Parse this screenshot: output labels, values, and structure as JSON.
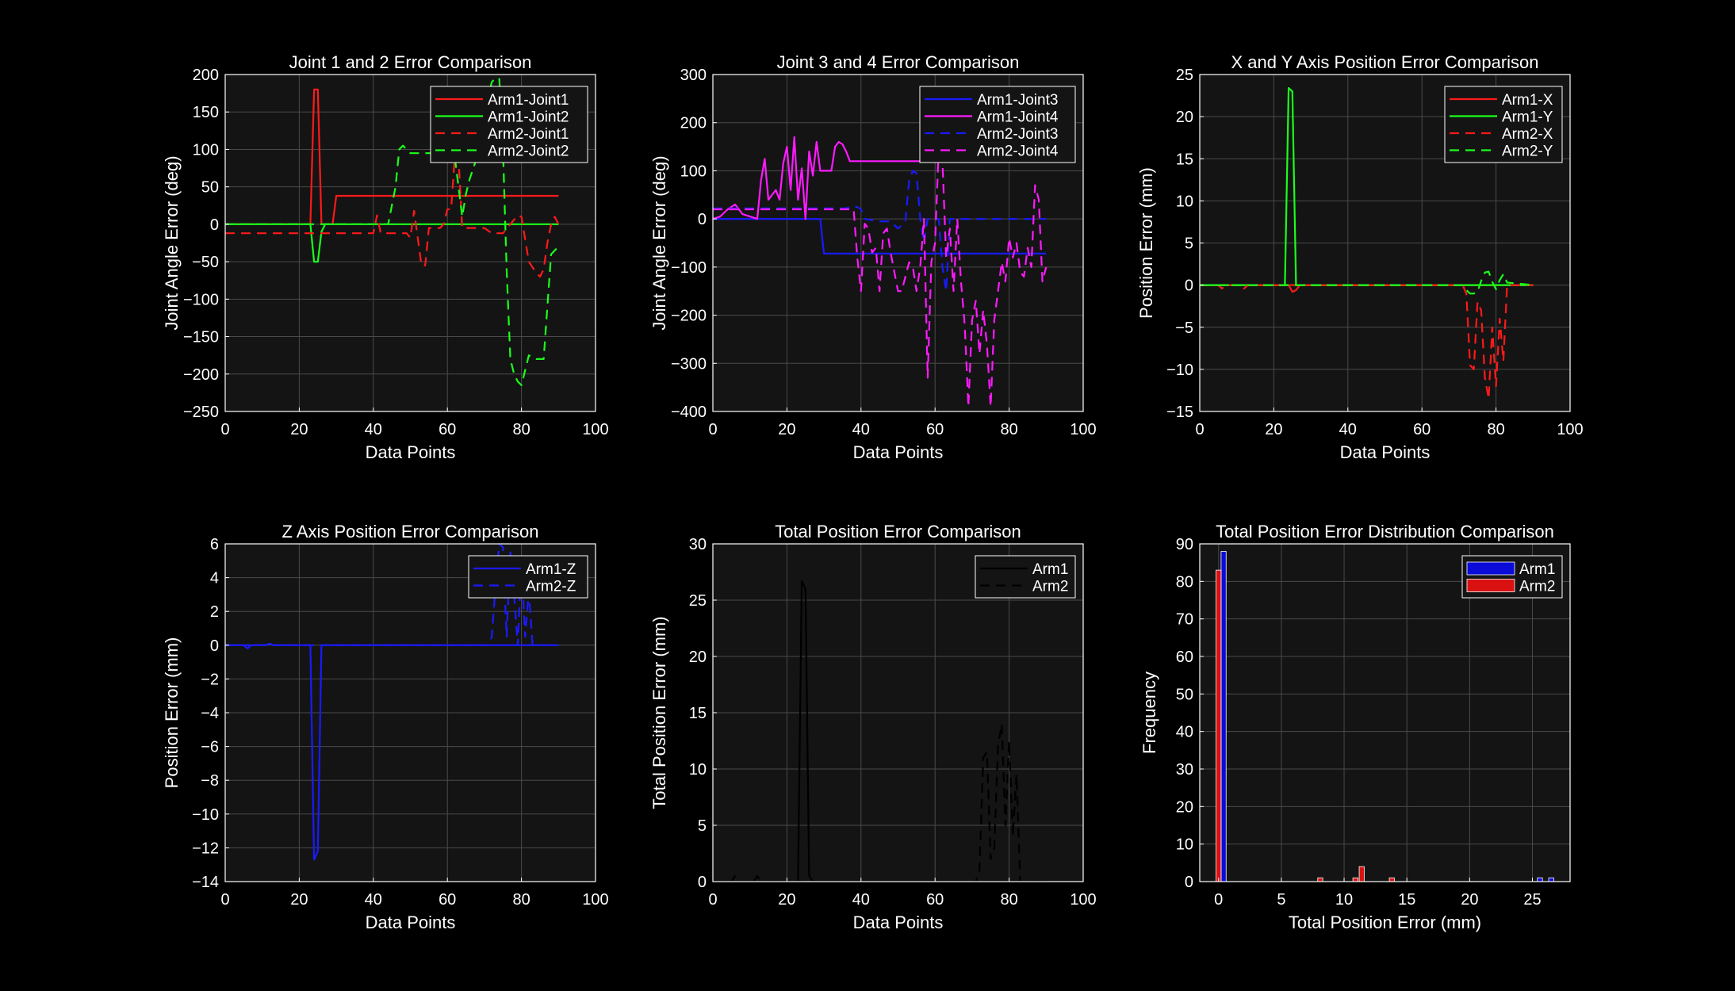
{
  "colors": {
    "background": "#000000",
    "axes_face": "#141414",
    "grid": "#4a4a4a",
    "text": "#ffffff",
    "red": "#ff1a1a",
    "green": "#1aff1a",
    "blue": "#1a1aff",
    "magenta": "#ff1aff",
    "black": "#000000",
    "bar_blue": "#0b0bd9",
    "bar_red": "#d91111"
  },
  "chart_data": [
    {
      "id": "p1",
      "type": "line",
      "title": "Joint 1 and 2 Error Comparison",
      "xlabel": "Data Points",
      "ylabel": "Joint Angle Error (deg)",
      "xlim": [
        0,
        100
      ],
      "ylim": [
        -250,
        200
      ],
      "xticks": [
        0,
        20,
        40,
        60,
        80,
        100
      ],
      "yticks": [
        -250,
        -200,
        -150,
        -100,
        -50,
        0,
        50,
        100,
        150,
        200
      ],
      "legend": "top-right",
      "series": [
        {
          "name": "Arm1-Joint1",
          "color": "red",
          "dash": "solid",
          "x": [
            0,
            23,
            24,
            25,
            26,
            28,
            29,
            30,
            31,
            90
          ],
          "y": [
            0,
            0,
            180,
            180,
            0,
            0,
            0,
            38,
            38,
            38
          ]
        },
        {
          "name": "Arm1-Joint2",
          "color": "green",
          "dash": "solid",
          "x": [
            0,
            23,
            24,
            25,
            26,
            27,
            90
          ],
          "y": [
            0,
            0,
            -50,
            -50,
            -10,
            0,
            0
          ]
        },
        {
          "name": "Arm2-Joint1",
          "color": "red",
          "dash": "dashed",
          "x": [
            0,
            40,
            41,
            42,
            45,
            47,
            49,
            50,
            51,
            53,
            54,
            55,
            57,
            58,
            59,
            60,
            61,
            62,
            63,
            64,
            65,
            66,
            67,
            68,
            70,
            72,
            74,
            75,
            77,
            79,
            80,
            82,
            84,
            85,
            86,
            87,
            88,
            89,
            90
          ],
          "y": [
            -12,
            -12,
            12,
            -12,
            -12,
            -12,
            -12,
            -18,
            18,
            -55,
            -55,
            -5,
            -5,
            -5,
            0,
            20,
            20,
            90,
            90,
            -5,
            -5,
            -5,
            -5,
            -5,
            -5,
            -12,
            -12,
            -12,
            0,
            12,
            10,
            -50,
            -65,
            -70,
            -60,
            -25,
            0,
            10,
            0
          ]
        },
        {
          "name": "Arm2-Joint2",
          "color": "green",
          "dash": "dashed",
          "x": [
            0,
            44,
            46,
            47,
            48,
            49,
            50,
            52,
            54,
            56,
            58,
            60,
            62,
            64,
            65,
            66,
            68,
            70,
            72,
            73,
            74,
            75,
            76,
            77,
            78,
            79,
            80,
            82,
            84,
            85,
            86,
            87,
            88,
            89,
            90
          ],
          "y": [
            0,
            0,
            50,
            100,
            105,
            100,
            95,
            95,
            95,
            95,
            95,
            95,
            90,
            10,
            40,
            60,
            90,
            150,
            190,
            195,
            195,
            100,
            -60,
            -180,
            -200,
            -210,
            -215,
            -175,
            -180,
            -180,
            -180,
            -110,
            -40,
            -35,
            -30
          ]
        }
      ]
    },
    {
      "id": "p2",
      "type": "line",
      "title": "Joint 3 and 4 Error Comparison",
      "xlabel": "Data Points",
      "ylabel": "Joint Angle Error (deg)",
      "xlim": [
        0,
        100
      ],
      "ylim": [
        -400,
        300
      ],
      "xticks": [
        0,
        20,
        40,
        60,
        80,
        100
      ],
      "yticks": [
        -400,
        -300,
        -200,
        -100,
        0,
        100,
        200,
        300
      ],
      "legend": "top-right",
      "series": [
        {
          "name": "Arm1-Joint3",
          "color": "blue",
          "dash": "solid",
          "x": [
            0,
            29,
            30,
            90
          ],
          "y": [
            0,
            0,
            -72,
            -72
          ]
        },
        {
          "name": "Arm1-Joint4",
          "color": "magenta",
          "dash": "solid",
          "x": [
            0,
            2,
            4,
            6,
            8,
            10,
            12,
            13,
            14,
            15,
            16,
            17,
            18,
            19,
            20,
            21,
            22,
            23,
            24,
            25,
            26,
            27,
            28,
            29,
            30,
            32,
            33,
            34,
            35,
            36,
            37,
            38,
            90
          ],
          "y": [
            0,
            5,
            20,
            30,
            10,
            5,
            0,
            80,
            125,
            40,
            50,
            60,
            40,
            115,
            150,
            60,
            170,
            40,
            105,
            0,
            140,
            90,
            160,
            100,
            100,
            100,
            150,
            160,
            155,
            140,
            120,
            120,
            120
          ]
        },
        {
          "name": "Arm2-Joint3",
          "color": "blue",
          "dash": "dashed",
          "x": [
            0,
            35,
            36,
            37,
            38,
            39,
            40,
            41,
            45,
            48,
            50,
            52,
            53,
            54,
            55,
            56,
            57,
            58,
            59,
            60,
            61,
            62,
            63,
            64,
            65,
            66,
            67,
            68,
            70,
            90
          ],
          "y": [
            22,
            22,
            22,
            25,
            25,
            25,
            20,
            0,
            -5,
            -5,
            -20,
            -5,
            80,
            100,
            95,
            0,
            -50,
            0,
            0,
            0,
            0,
            -100,
            -150,
            0,
            0,
            0,
            0,
            0,
            0,
            0
          ]
        },
        {
          "name": "Arm2-Joint4",
          "color": "magenta",
          "dash": "dashed",
          "x": [
            0,
            38,
            39,
            40,
            41,
            42,
            43,
            44,
            45,
            46,
            47,
            48,
            49,
            50,
            51,
            52,
            53,
            54,
            55,
            56,
            57,
            58,
            59,
            60,
            61,
            62,
            63,
            64,
            65,
            66,
            67,
            68,
            69,
            70,
            71,
            72,
            73,
            74,
            75,
            76,
            77,
            78,
            79,
            80,
            81,
            82,
            83,
            84,
            85,
            86,
            87,
            88,
            89,
            90
          ],
          "y": [
            20,
            20,
            -80,
            -150,
            -10,
            -20,
            -70,
            -60,
            -150,
            -30,
            -20,
            -70,
            -110,
            -150,
            -150,
            -120,
            -90,
            -100,
            -150,
            -100,
            0,
            -330,
            -90,
            -50,
            150,
            120,
            -80,
            -20,
            -150,
            0,
            -130,
            -220,
            -390,
            -210,
            -170,
            -280,
            -190,
            -260,
            -390,
            -210,
            -150,
            -90,
            -130,
            -40,
            -80,
            -50,
            -110,
            -120,
            -60,
            -100,
            70,
            40,
            -130,
            -100
          ]
        }
      ]
    },
    {
      "id": "p3",
      "type": "line",
      "title": "X and Y Axis Position Error Comparison",
      "xlabel": "Data Points",
      "ylabel": "Position Error (mm)",
      "xlim": [
        0,
        100
      ],
      "ylim": [
        -15,
        25
      ],
      "xticks": [
        0,
        20,
        40,
        60,
        80,
        100
      ],
      "yticks": [
        -15,
        -10,
        -5,
        0,
        5,
        10,
        15,
        20,
        25
      ],
      "legend": "top-right",
      "series": [
        {
          "name": "Arm1-X",
          "color": "red",
          "dash": "solid",
          "x": [
            0,
            24,
            25,
            26,
            27,
            90
          ],
          "y": [
            0,
            0,
            -0.8,
            -0.6,
            0,
            0
          ]
        },
        {
          "name": "Arm1-Y",
          "color": "green",
          "dash": "solid",
          "x": [
            0,
            23,
            24,
            25,
            26,
            90
          ],
          "y": [
            0,
            0,
            23.4,
            23.0,
            0,
            0
          ]
        },
        {
          "name": "Arm2-X",
          "color": "red",
          "dash": "dashed",
          "x": [
            0,
            5,
            6,
            7,
            11,
            12,
            13,
            71,
            72,
            73,
            74,
            75,
            76,
            77,
            78,
            79,
            80,
            81,
            82,
            83,
            84,
            90
          ],
          "y": [
            0,
            0,
            -0.4,
            0,
            0,
            -0.4,
            0,
            0,
            -1,
            -9.5,
            -10,
            -2,
            -3,
            -11,
            -13.5,
            -5,
            -12,
            -4,
            -9,
            0,
            0,
            0
          ]
        },
        {
          "name": "Arm2-Y",
          "color": "green",
          "dash": "dashed",
          "x": [
            0,
            71,
            72,
            73,
            74,
            75,
            76,
            77,
            78,
            79,
            80,
            81,
            82,
            83,
            90
          ],
          "y": [
            0,
            0,
            -0.6,
            -1,
            -1,
            -0.8,
            0.5,
            1.5,
            1.6,
            0.4,
            -0.5,
            0.6,
            1.3,
            0.3,
            0
          ]
        }
      ]
    },
    {
      "id": "p4",
      "type": "line",
      "title": "Z Axis Position Error Comparison",
      "xlabel": "Data Points",
      "ylabel": "Position Error (mm)",
      "xlim": [
        0,
        100
      ],
      "ylim": [
        -14,
        6
      ],
      "xticks": [
        0,
        20,
        40,
        60,
        80,
        100
      ],
      "yticks": [
        -14,
        -12,
        -10,
        -8,
        -6,
        -4,
        -2,
        0,
        2,
        4,
        6
      ],
      "legend": "top-right",
      "series": [
        {
          "name": "Arm1-Z",
          "color": "blue",
          "dash": "solid",
          "x": [
            0,
            5,
            6,
            7,
            11,
            12,
            13,
            23,
            24,
            25,
            26,
            90
          ],
          "y": [
            0,
            0,
            -0.2,
            0,
            0,
            0.1,
            0,
            0,
            -12.7,
            -12.2,
            0,
            0
          ]
        },
        {
          "name": "Arm2-Z",
          "color": "blue",
          "dash": "dashed",
          "x": [
            0,
            71,
            72,
            73,
            74,
            75,
            76,
            77,
            78,
            79,
            80,
            81,
            82,
            83,
            90
          ],
          "y": [
            0,
            0,
            0.5,
            3.5,
            6,
            5.8,
            0.5,
            5.5,
            3,
            0,
            5,
            0.5,
            3.2,
            0,
            0
          ]
        }
      ]
    },
    {
      "id": "p5",
      "type": "line",
      "title": "Total Position Error Comparison",
      "xlabel": "Data Points",
      "ylabel": "Total Position Error (mm)",
      "xlim": [
        0,
        100
      ],
      "ylim": [
        0,
        30
      ],
      "xticks": [
        0,
        20,
        40,
        60,
        80,
        100
      ],
      "yticks": [
        0,
        5,
        10,
        15,
        20,
        25,
        30
      ],
      "legend": "top-right",
      "series": [
        {
          "name": "Arm1",
          "color": "black",
          "dash": "solid",
          "x": [
            0,
            23,
            24,
            25,
            26,
            27,
            90
          ],
          "y": [
            0,
            0,
            26.7,
            26.0,
            0.5,
            0,
            0
          ]
        },
        {
          "name": "Arm2",
          "color": "black",
          "dash": "dashed",
          "x": [
            0,
            5,
            6,
            7,
            11,
            12,
            13,
            71,
            72,
            73,
            74,
            75,
            76,
            77,
            78,
            79,
            80,
            81,
            82,
            83,
            90
          ],
          "y": [
            0,
            0,
            0.5,
            0,
            0,
            0.5,
            0,
            0,
            1,
            11,
            11.5,
            2,
            3,
            12,
            14,
            5,
            12.5,
            4,
            9.5,
            0,
            0
          ]
        }
      ]
    },
    {
      "id": "p6",
      "type": "bar",
      "title": "Total Position Error Distribution Comparison",
      "xlabel": "Total Position Error (mm)",
      "ylabel": "Frequency",
      "xlim": [
        -1.5,
        28
      ],
      "ylim": [
        0,
        90
      ],
      "xticks": [
        0,
        5,
        10,
        15,
        20,
        25
      ],
      "yticks": [
        0,
        10,
        20,
        30,
        40,
        50,
        60,
        70,
        80,
        90
      ],
      "legend": "top-right",
      "bin_width": 0.4,
      "series": [
        {
          "name": "Arm1",
          "color": "bar_blue",
          "x": [
            0.4,
            25.6,
            26.5
          ],
          "y": [
            88,
            1,
            1
          ]
        },
        {
          "name": "Arm2",
          "color": "bar_red",
          "x": [
            0.0,
            8.1,
            10.9,
            11.4,
            13.8
          ],
          "y": [
            83,
            1,
            1,
            4,
            1
          ]
        }
      ]
    }
  ]
}
